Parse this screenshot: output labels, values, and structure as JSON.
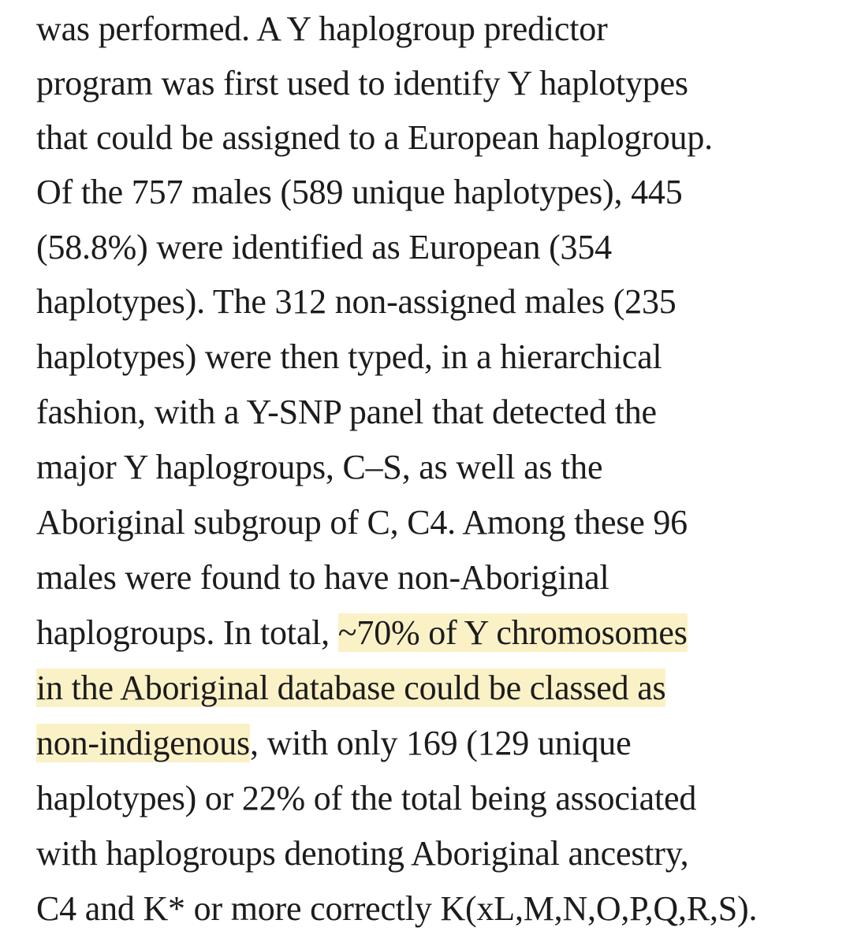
{
  "paragraph": {
    "lines": [
      {
        "plain": "was performed. A Y haplogroup predictor"
      },
      {
        "plain": "program was first used to identify Y haplotypes"
      },
      {
        "plain": "that could be assigned to a European haplogroup."
      },
      {
        "plain": "Of the 757 males (589 unique haplotypes), 445"
      },
      {
        "plain": "(58.8%) were identified as European (354"
      },
      {
        "plain": "haplotypes). The 312 non-assigned males (235"
      },
      {
        "plain": "haplotypes) were then typed, in a hierarchical"
      },
      {
        "plain": "fashion, with a Y-SNP panel that detected the"
      },
      {
        "plain": "major Y haplogroups, C–S, as well as the"
      },
      {
        "plain": "Aboriginal subgroup of C, C4. Among these 96"
      },
      {
        "plain": "males were found to have non-Aboriginal"
      },
      {
        "before": "haplogroups. In total, ",
        "highlight": "~70% of Y chromosomes"
      },
      {
        "highlight": "in the Aboriginal database could be classed as"
      },
      {
        "highlight": "non-indigenous",
        "after": ", with only 169 (129 unique"
      },
      {
        "plain": "haplotypes) or 22% of the total being associated"
      },
      {
        "plain": "with haplogroups denoting Aboriginal ancestry,"
      },
      {
        "plain": "C4 and K* or more correctly K(xL,M,N,O,P,Q,R,S)."
      }
    ],
    "highlight_color": "#fbf1c7"
  }
}
